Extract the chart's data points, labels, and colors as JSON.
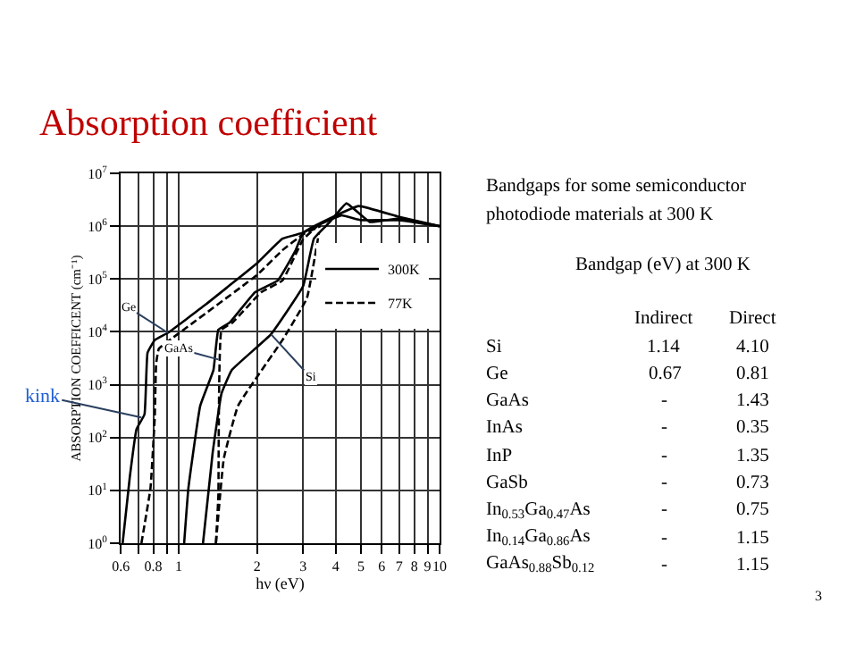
{
  "chart_data": {
    "type": "line",
    "title": "Absorption coefficient",
    "xlabel": "hν (eV)",
    "ylabel": "ABSORPTION COEFFICENT (cm⁻¹)",
    "log": "xy",
    "grid": true,
    "legend": "right",
    "marker": "none",
    "xlim": [
      0.6,
      10
    ],
    "ylim": [
      1,
      10000000
    ],
    "xticks": [
      {
        "value": 0.6,
        "label": "0.6"
      },
      {
        "value": 0.7,
        "label": null
      },
      {
        "value": 0.8,
        "label": "0.8"
      },
      {
        "value": 0.9,
        "label": null
      },
      1,
      2,
      3,
      4,
      5,
      6,
      7,
      8,
      9,
      10
    ],
    "yticks": [
      {
        "value": 1,
        "label": "10$^{0}$"
      },
      {
        "value": 10,
        "label": "10$^{1}$"
      },
      {
        "value": 100,
        "label": "10$^{2}$"
      },
      {
        "value": 1000,
        "label": "10$^{3}$"
      },
      {
        "value": 10000,
        "label": "10$^{4}$"
      },
      {
        "value": 100000,
        "label": "10$^{5}$"
      },
      {
        "value": 1000000,
        "label": "10$^{6}$"
      },
      {
        "value": 10000000,
        "label": "10$^{7}$"
      }
    ],
    "series": [
      {
        "name": "300K",
        "color": "#000000",
        "line_style": "solid",
        "x": [
          0.61,
          0.65,
          0.69,
          0.74,
          0.76,
          0.81,
          0.91,
          1.27,
          2.0,
          2.5,
          3.0,
          3.5,
          4.2,
          5.0,
          7.0,
          10
        ],
        "values": [
          1,
          18,
          145,
          275,
          4000,
          7000,
          9600,
          33000,
          200000,
          580000,
          750000,
          1100000,
          1600000,
          1300000,
          1300000,
          1000000
        ]
      },
      {
        "name": "77K",
        "color": "#000000",
        "line_style": "dashed",
        "x": [
          0.72,
          0.78,
          0.81,
          0.82,
          0.84,
          0.99,
          2.0,
          2.5,
          3.0,
          3.5
        ],
        "values": [
          1,
          11,
          240,
          2500,
          4800,
          9000,
          120000,
          350000,
          700000,
          1000000
        ]
      },
      {
        "color": "#000000",
        "line_style": "solid",
        "x": [
          1.05,
          1.09,
          1.21,
          1.36,
          1.42,
          1.57,
          1.96,
          2.4,
          2.8,
          3.0,
          3.8,
          4.9,
          7.0,
          10
        ],
        "values": [
          1,
          11,
          400,
          1900,
          11000,
          15000,
          56000,
          94000,
          340000,
          750000,
          1400000,
          2400000,
          1500000,
          1000000
        ]
      },
      {
        "color": "#000000",
        "line_style": "dashed",
        "x": [
          1.39,
          1.42,
          1.46,
          1.61,
          2.07,
          2.5,
          3.0,
          3.4
        ],
        "values": [
          1,
          8,
          11000,
          15000,
          56000,
          94000,
          560000,
          1000000
        ]
      },
      {
        "color": "#000000",
        "line_style": "solid",
        "x": [
          1.24,
          1.35,
          1.46,
          1.6,
          2.26,
          3.0,
          3.3,
          3.8,
          4.4,
          5.4,
          7.0,
          10
        ],
        "values": [
          1,
          51,
          680,
          1900,
          9000,
          73000,
          580000,
          1200000,
          2700000,
          1200000,
          1400000,
          1000000
        ]
      },
      {
        "color": "#000000",
        "line_style": "dashed",
        "x": [
          1.39,
          1.49,
          1.69,
          2.5,
          3.1,
          3.45
        ],
        "values": [
          1,
          40,
          400,
          7000,
          43000,
          750000
        ]
      }
    ],
    "annotations": [
      {
        "text": "Ge",
        "x": 0.91,
        "y": 9600
      },
      {
        "text": "GaAs",
        "x": 1.42,
        "y": 3000
      },
      {
        "text": "Si",
        "x": 2.26,
        "y": 9000
      },
      {
        "text": "kink",
        "x": 0.72,
        "y": 240
      },
      "Bandgaps for some semiconductor",
      "photodiode materials at 300 K",
      "Bandgap (eV) at 300 K",
      "Indirect",
      "Direct",
      "Si",
      "1.14",
      "4.10",
      "Ge",
      "0.67",
      "0.81",
      "GaAs",
      "-",
      "1.43",
      "InAs",
      "-",
      "0.35",
      "InP",
      "-",
      "1.35",
      "GaSb",
      "-",
      "0.73",
      "In$_{0.53}$Ga$_{0.47}$As",
      "-",
      "0.75",
      "In$_{0.14}$Ga$_{0.86}$As",
      "-",
      "1.15",
      "GaAs$_{0.88}$Sb$_{0.12}$",
      "-",
      "1.15",
      "3"
    ]
  }
}
